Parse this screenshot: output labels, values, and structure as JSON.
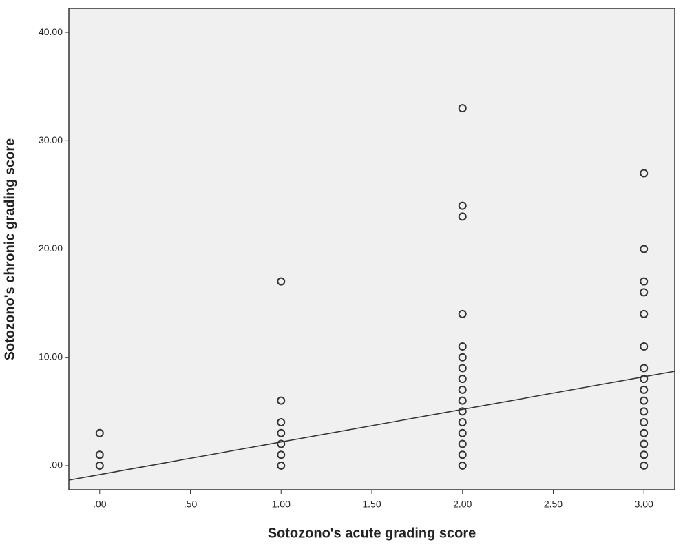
{
  "chart_data": {
    "type": "scatter",
    "x_label": "Sotozono's acute grading score",
    "y_label": "Sotozono's chronic grading score",
    "x": [
      0,
      0,
      0,
      1,
      1,
      1,
      1,
      1,
      1,
      1,
      2,
      2,
      2,
      2,
      2,
      2,
      2,
      2,
      2,
      2,
      2,
      2,
      2,
      2,
      2,
      2,
      3,
      3,
      3,
      3,
      3,
      3,
      3,
      3,
      3,
      3,
      3,
      3,
      3,
      3,
      3,
      3
    ],
    "values": [
      0,
      1,
      3,
      0,
      1,
      2,
      3,
      4,
      6,
      17,
      0,
      1,
      2,
      3,
      4,
      5,
      6,
      7,
      8,
      9,
      10,
      11,
      14,
      23,
      24,
      33,
      0,
      1,
      2,
      3,
      4,
      5,
      6,
      7,
      8,
      9,
      11,
      14,
      16,
      17,
      20,
      27
    ],
    "color": "#333333",
    "fit_line": {
      "intercept": -0.83,
      "slope": 3.01,
      "color": "#333333"
    },
    "xlim": [
      -0.17,
      3.17
    ],
    "ylim": [
      -2.23,
      42.23
    ],
    "xticks": [
      {
        "value": 0,
        "label": ".00"
      },
      {
        "value": 0.5,
        "label": ".50"
      },
      {
        "value": 1,
        "label": "1.00"
      },
      {
        "value": 1.5,
        "label": "1.50"
      },
      {
        "value": 2,
        "label": "2.00"
      },
      {
        "value": 2.5,
        "label": "2.50"
      },
      {
        "value": 3,
        "label": "3.00"
      }
    ],
    "yticks": [
      {
        "value": 0,
        "label": ".00"
      },
      {
        "value": 10,
        "label": "10.00"
      },
      {
        "value": 20,
        "label": "20.00"
      },
      {
        "value": 30,
        "label": "30.00"
      },
      {
        "value": 40,
        "label": "40.00"
      }
    ],
    "grid": false,
    "plot_background": "#f0f0f0"
  }
}
